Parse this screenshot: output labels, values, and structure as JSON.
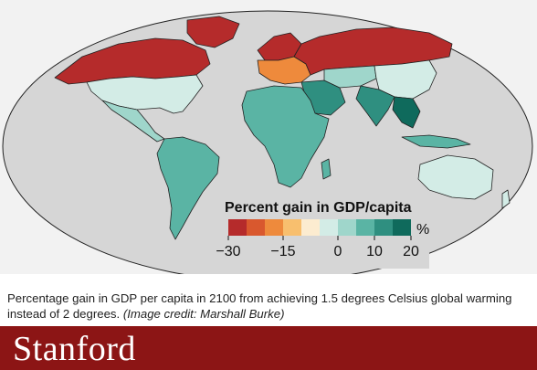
{
  "map": {
    "legend_title": "Percent gain in GDP/capita",
    "legend_unit": "%",
    "legend_ticks": [
      "−30",
      "−15",
      "0",
      "10",
      "20"
    ],
    "legend_tick_values": [
      -30,
      -15,
      0,
      10,
      20
    ],
    "legend_colors": [
      "#b52b2b",
      "#d9582e",
      "#ee8a3c",
      "#f8bf6e",
      "#fcecd0",
      "#d3ece6",
      "#9fd6cb",
      "#5ab4a4",
      "#2f8f80",
      "#0f6a5c"
    ],
    "ocean_color": "#d6d6d6",
    "border_color": "#222222",
    "regions": [
      {
        "name": "canada",
        "color": "#b52b2b"
      },
      {
        "name": "greenland",
        "color": "#b52b2b"
      },
      {
        "name": "usa",
        "color": "#d3ece6"
      },
      {
        "name": "russia",
        "color": "#b52b2b"
      },
      {
        "name": "northern-europe",
        "color": "#b52b2b"
      },
      {
        "name": "central-europe",
        "color": "#ee8a3c"
      },
      {
        "name": "china",
        "color": "#d3ece6"
      },
      {
        "name": "africa",
        "color": "#5ab4a4"
      },
      {
        "name": "south-america",
        "color": "#5ab4a4"
      },
      {
        "name": "india",
        "color": "#2f8f80"
      },
      {
        "name": "australia",
        "color": "#d3ece6"
      }
    ]
  },
  "caption": {
    "text": "Percentage gain in GDP per capita in 2100 from achieving 1.5 degrees Celsius global warming instead of 2 degrees.",
    "credit": "(Image credit: Marshall Burke)"
  },
  "footer": {
    "brand": "Stanford",
    "color": "#8c1515"
  }
}
